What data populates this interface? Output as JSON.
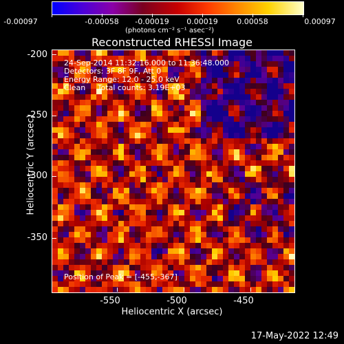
{
  "colorbar": {
    "ticks": [
      "-0.00097",
      "-0.00058",
      "-0.00019",
      "0.00019",
      "0.00058",
      "0.00097"
    ],
    "unit_label": "(photons cm⁻² s⁻¹ asec⁻²)"
  },
  "title": "Reconstructed RHESSI Image",
  "annotation": {
    "line1": "24-Sep-2014 11:32:16.000 to 11:36:48.000",
    "line2": "Detectors: 3F 8F 9F, Att 0",
    "line3": "Energy Range: 12.0 - 25.0 keV",
    "line4": "Clean     Total counts: 3.19E+03"
  },
  "peak_text": "Position of Peak = [-455,-367]",
  "axes": {
    "xlabel": "Heliocentric X (arcsec)",
    "ylabel": "Heliocentric Y (arcsec)",
    "xticks": [
      "-550",
      "-500",
      "-450"
    ],
    "yticks": [
      "-200",
      "-250",
      "-300",
      "-350"
    ],
    "xrange": [
      -592,
      -410
    ],
    "yrange": [
      -385,
      -197
    ]
  },
  "timestamp": "17-May-2022 12:49"
}
